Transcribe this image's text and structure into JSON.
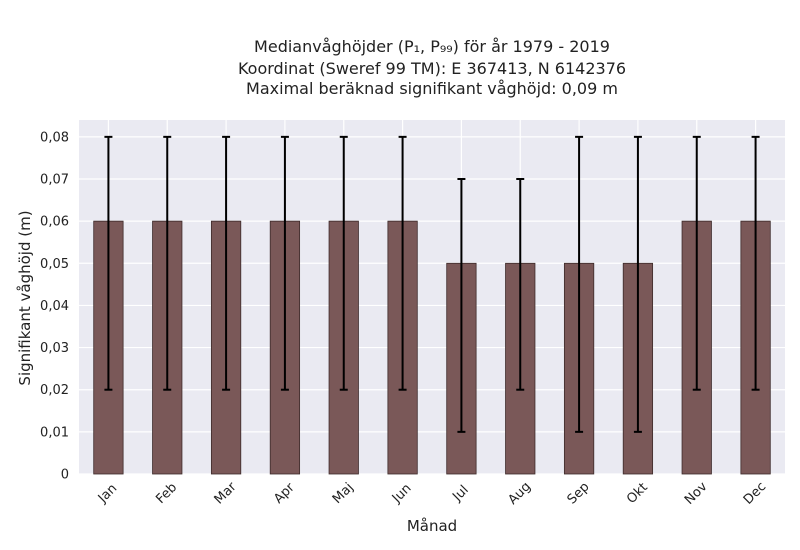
{
  "chart_data": {
    "type": "bar",
    "title_lines": [
      "Medianvåghöjder (P₁, P₉₉) för år 1979 - 2019",
      "Koordinat (Sweref 99 TM): E 367413, N 6142376",
      "Maximal beräknad signifikant våghöjd: 0,09 m"
    ],
    "xlabel": "Månad",
    "ylabel": "Signifikant våghöjd (m)",
    "categories": [
      "Jan",
      "Feb",
      "Mar",
      "Apr",
      "Maj",
      "Jun",
      "Jul",
      "Aug",
      "Sep",
      "Okt",
      "Nov",
      "Dec"
    ],
    "values": [
      0.06,
      0.06,
      0.06,
      0.06,
      0.06,
      0.06,
      0.05,
      0.05,
      0.05,
      0.05,
      0.06,
      0.06
    ],
    "error_low": [
      0.02,
      0.02,
      0.02,
      0.02,
      0.02,
      0.02,
      0.01,
      0.02,
      0.01,
      0.01,
      0.02,
      0.02
    ],
    "error_high": [
      0.08,
      0.08,
      0.08,
      0.08,
      0.08,
      0.08,
      0.07,
      0.07,
      0.08,
      0.08,
      0.08,
      0.08
    ],
    "ylim": [
      0,
      0.084
    ],
    "yticks": [
      0,
      0.01,
      0.02,
      0.03,
      0.04,
      0.05,
      0.06,
      0.07,
      0.08
    ],
    "ytick_labels": [
      "0",
      "0,01",
      "0,02",
      "0,03",
      "0,04",
      "0,05",
      "0,06",
      "0,07",
      "0,08"
    ],
    "grid": true,
    "legend": "none",
    "colors": {
      "bar": "#7a5858",
      "bar_edge": "#3d2a2a",
      "error_bar": "#000000",
      "plot_background": "#eaeaf2",
      "grid": "#ffffff"
    }
  }
}
